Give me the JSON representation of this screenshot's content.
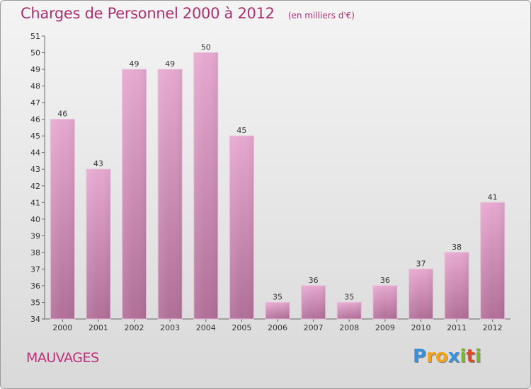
{
  "chart_data": {
    "type": "bar",
    "title": "Charges de Personnel 2000 à 2012",
    "subtitle": "(en milliers d'€)",
    "categories": [
      "2000",
      "2001",
      "2002",
      "2003",
      "2004",
      "2005",
      "2006",
      "2007",
      "2008",
      "2009",
      "2010",
      "2011",
      "2012"
    ],
    "values": [
      46,
      43,
      49,
      49,
      50,
      45,
      35,
      36,
      35,
      36,
      37,
      38,
      41
    ],
    "ylim": [
      34,
      51
    ],
    "yticks": [
      34,
      35,
      36,
      37,
      38,
      39,
      40,
      41,
      42,
      43,
      44,
      45,
      46,
      47,
      48,
      49,
      50,
      51
    ],
    "grid": false,
    "legend": "none",
    "bar_color": "#c27aa6"
  },
  "commune": "MAUVAGES",
  "logo": {
    "letters": [
      "P",
      "r",
      "o",
      "x",
      "i",
      "t",
      "i"
    ],
    "colors": [
      "#3a8fd8",
      "#f2a31b",
      "#f2a31b",
      "#3a8fd8",
      "#7ab52e",
      "#e04a2a",
      "#7ab52e"
    ]
  }
}
